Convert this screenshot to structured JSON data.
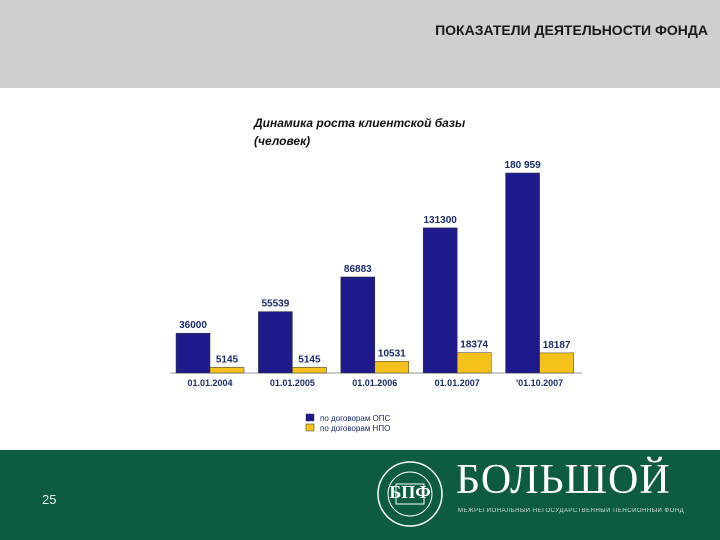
{
  "header": {
    "title": "ПОКАЗАТЕЛИ ДЕЯТЕЛЬНОСТИ ФОНДА"
  },
  "chart_title_lines": [
    "Динамика роста клиентской базы",
    "(человек)"
  ],
  "colors": {
    "ops": "#1f1a8c",
    "npo": "#f4c21b",
    "header_bg": "#cfcfcf",
    "footer_bg": "#0e5c3e"
  },
  "chart_data": {
    "type": "bar",
    "title": "Динамика роста клиентской базы (человек)",
    "categories": [
      "01.01.2004",
      "01.01.2005",
      "01.01.2006",
      "01.01.2007",
      "'01.10.2007"
    ],
    "series": [
      {
        "name": "по договорам ОПС",
        "values": [
          36000,
          55539,
          86883,
          131300,
          180959
        ],
        "labels": [
          "36000",
          "55539",
          "86883",
          "131300",
          "180 959"
        ]
      },
      {
        "name": "по договорам НПО",
        "values": [
          5145,
          5145,
          10531,
          18374,
          18187
        ],
        "labels": [
          "5145",
          "5145",
          "10531",
          "18374",
          "18187"
        ]
      }
    ],
    "ylim": [
      0,
      190000
    ],
    "grid": false,
    "legend": "bottom"
  },
  "footer": {
    "page_number": "25",
    "brand_name": "БОЛЬШОЙ",
    "brand_subtitle": "МЕЖРЕГИОНАЛЬНЫЙ НЕГОСУДАРСТВЕННЫЙ ПЕНСИОННЫЙ ФОНД",
    "logo_letters": "БПФ",
    "logo_ring_text": "БОЛЬШОЙ"
  }
}
